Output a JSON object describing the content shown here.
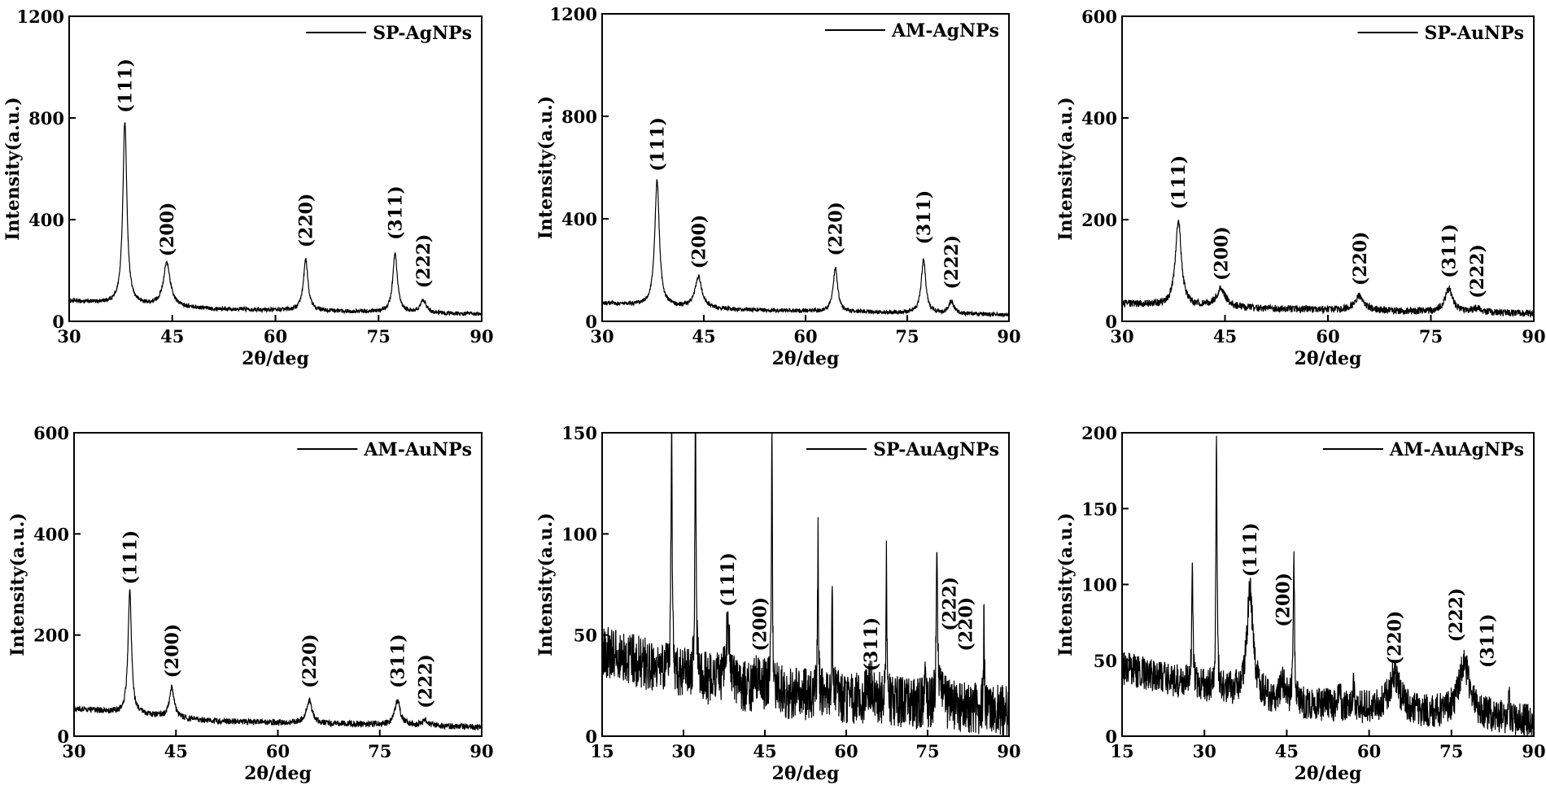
{
  "chart_data": [
    {
      "type": "line",
      "xlabel": "2θ/deg",
      "ylabel": "Intensity(a.u.)",
      "xlim": [
        30,
        90
      ],
      "ylim": [
        0,
        1200
      ],
      "xticks": [
        "30",
        "45",
        "60",
        "75",
        "90"
      ],
      "yticks": [
        "0",
        "400",
        "800",
        "1200"
      ],
      "legend_position": "top-right",
      "series": [
        {
          "name": "SP-AgNPs",
          "baseline": [
            [
              30,
              80
            ],
            [
              50,
              50
            ],
            [
              90,
              28
            ]
          ],
          "noise": 8,
          "peaks": [
            [
              38.1,
              720,
              0.35
            ],
            [
              44.2,
              170,
              0.6
            ],
            [
              64.4,
              200,
              0.4
            ],
            [
              77.4,
              230,
              0.4
            ],
            [
              81.5,
              50,
              0.5
            ]
          ]
        }
      ],
      "peak_labels": [
        {
          "text": "(111)",
          "x": 38.1,
          "y": 820
        },
        {
          "text": "(200)",
          "x": 44.2,
          "y": 255
        },
        {
          "text": "(220)",
          "x": 64.4,
          "y": 290
        },
        {
          "text": "(311)",
          "x": 77.4,
          "y": 320
        },
        {
          "text": "(222)",
          "x": 81.5,
          "y": 130
        }
      ]
    },
    {
      "type": "line",
      "xlabel": "2θ/deg",
      "ylabel": "Intensity(a.u.)",
      "xlim": [
        30,
        90
      ],
      "ylim": [
        0,
        1200
      ],
      "xticks": [
        "30",
        "45",
        "60",
        "75",
        "90"
      ],
      "yticks": [
        "0",
        "400",
        "800",
        "1200"
      ],
      "legend_position": "top-right",
      "series": [
        {
          "name": "AM-AgNPs",
          "baseline": [
            [
              30,
              70
            ],
            [
              50,
              45
            ],
            [
              90,
              25
            ]
          ],
          "noise": 8,
          "peaks": [
            [
              38.1,
              490,
              0.4
            ],
            [
              44.2,
              120,
              0.6
            ],
            [
              64.4,
              170,
              0.4
            ],
            [
              77.4,
              210,
              0.4
            ],
            [
              81.5,
              45,
              0.5
            ]
          ]
        }
      ],
      "peak_labels": [
        {
          "text": "(111)",
          "x": 38.1,
          "y": 585
        },
        {
          "text": "(200)",
          "x": 44.2,
          "y": 205
        },
        {
          "text": "(220)",
          "x": 64.4,
          "y": 255
        },
        {
          "text": "(311)",
          "x": 77.4,
          "y": 300
        },
        {
          "text": "(222)",
          "x": 81.5,
          "y": 125
        }
      ]
    },
    {
      "type": "line",
      "xlabel": "2θ/deg",
      "ylabel": "Intensity(a.u.)",
      "xlim": [
        30,
        90
      ],
      "ylim": [
        0,
        600
      ],
      "xticks": [
        "30",
        "45",
        "60",
        "75",
        "90"
      ],
      "yticks": [
        "0",
        "200",
        "400",
        "600"
      ],
      "legend_position": "top-right",
      "series": [
        {
          "name": "SP-AuNPs",
          "baseline": [
            [
              30,
              35
            ],
            [
              50,
              25
            ],
            [
              90,
              15
            ]
          ],
          "noise": 7,
          "peaks": [
            [
              38.2,
              170,
              0.5
            ],
            [
              44.4,
              35,
              0.8
            ],
            [
              64.6,
              28,
              0.8
            ],
            [
              77.6,
              45,
              0.7
            ],
            [
              81.7,
              8,
              0.8
            ]
          ]
        }
      ],
      "peak_labels": [
        {
          "text": "(111)",
          "x": 38.2,
          "y": 220
        },
        {
          "text": "(200)",
          "x": 44.4,
          "y": 80
        },
        {
          "text": "(220)",
          "x": 64.6,
          "y": 70
        },
        {
          "text": "(311)",
          "x": 77.6,
          "y": 85
        },
        {
          "text": "(222)",
          "x": 81.7,
          "y": 45
        }
      ]
    },
    {
      "type": "line",
      "xlabel": "2θ/deg",
      "ylabel": "Intensity(a.u.)",
      "xlim": [
        30,
        90
      ],
      "ylim": [
        0,
        600
      ],
      "xticks": [
        "30",
        "45",
        "60",
        "75",
        "90"
      ],
      "yticks": [
        "0",
        "200",
        "400",
        "600"
      ],
      "legend_position": "top-right",
      "series": [
        {
          "name": "AM-AuNPs",
          "baseline": [
            [
              30,
              55
            ],
            [
              50,
              30
            ],
            [
              90,
              18
            ]
          ],
          "noise": 6,
          "peaks": [
            [
              38.2,
              245,
              0.3
            ],
            [
              44.4,
              60,
              0.4
            ],
            [
              64.6,
              45,
              0.5
            ],
            [
              77.6,
              48,
              0.5
            ],
            [
              81.7,
              10,
              0.6
            ]
          ]
        }
      ],
      "peak_labels": [
        {
          "text": "(111)",
          "x": 38.2,
          "y": 300
        },
        {
          "text": "(200)",
          "x": 44.4,
          "y": 115
        },
        {
          "text": "(220)",
          "x": 64.6,
          "y": 95
        },
        {
          "text": "(311)",
          "x": 77.6,
          "y": 95
        },
        {
          "text": "(222)",
          "x": 81.7,
          "y": 55
        }
      ]
    },
    {
      "type": "line",
      "xlabel": "2θ/deg",
      "ylabel": "Intensity(a.u.)",
      "xlim": [
        15,
        90
      ],
      "ylim": [
        0,
        150
      ],
      "xticks": [
        "15",
        "30",
        "45",
        "60",
        "75",
        "90"
      ],
      "yticks": [
        "0",
        "50",
        "100",
        "150"
      ],
      "legend_position": "top-right",
      "series": [
        {
          "name": "SP-AuAgNPs",
          "baseline": [
            [
              15,
              42
            ],
            [
              30,
              30
            ],
            [
              45,
              22
            ],
            [
              90,
              12
            ]
          ],
          "noise": 13,
          "peaks": [
            [
              27.8,
              130,
              0.12
            ],
            [
              32.2,
              140,
              0.12
            ],
            [
              38.1,
              25,
              0.5
            ],
            [
              44.0,
              10,
              0.6
            ],
            [
              46.3,
              140,
              0.1
            ],
            [
              54.8,
              82,
              0.1
            ],
            [
              57.4,
              60,
              0.1
            ],
            [
              64.5,
              8,
              0.6
            ],
            [
              67.4,
              75,
              0.1
            ],
            [
              74.5,
              15,
              0.1
            ],
            [
              76.7,
              80,
              0.12
            ],
            [
              77.5,
              12,
              0.5
            ],
            [
              85.4,
              45,
              0.1
            ]
          ]
        }
      ],
      "peak_labels": [
        {
          "text": "(111)",
          "x": 38.1,
          "y": 64
        },
        {
          "text": "(200)",
          "x": 44.0,
          "y": 42
        },
        {
          "text": "(311)",
          "x": 64.5,
          "y": 32
        },
        {
          "text": "(222)",
          "x": 79.0,
          "y": 52
        },
        {
          "text": "(220)",
          "x": 82.0,
          "y": 42
        }
      ]
    },
    {
      "type": "line",
      "xlabel": "2θ/deg",
      "ylabel": "Intensity(a.u.)",
      "xlim": [
        15,
        90
      ],
      "ylim": [
        0,
        200
      ],
      "xticks": [
        "15",
        "30",
        "45",
        "60",
        "75",
        "90"
      ],
      "yticks": [
        "0",
        "50",
        "100",
        "150",
        "200"
      ],
      "legend_position": "top-right",
      "series": [
        {
          "name": "AM-AuAgNPs",
          "baseline": [
            [
              15,
              45
            ],
            [
              30,
              32
            ],
            [
              45,
              22
            ],
            [
              90,
              10
            ]
          ],
          "noise": 11,
          "peaks": [
            [
              27.8,
              90,
              0.12
            ],
            [
              32.2,
              170,
              0.12
            ],
            [
              38.3,
              68,
              0.7
            ],
            [
              44.3,
              12,
              0.6
            ],
            [
              46.3,
              105,
              0.12
            ],
            [
              54.6,
              20,
              0.12
            ],
            [
              57.2,
              15,
              0.12
            ],
            [
              64.6,
              22,
              1.2
            ],
            [
              77.3,
              35,
              1.2
            ],
            [
              85.5,
              12,
              0.12
            ]
          ]
        }
      ],
      "peak_labels": [
        {
          "text": "(111)",
          "x": 38.3,
          "y": 105
        },
        {
          "text": "(200)",
          "x": 44.3,
          "y": 72
        },
        {
          "text": "(220)",
          "x": 64.6,
          "y": 47
        },
        {
          "text": "(222)",
          "x": 75.8,
          "y": 62
        },
        {
          "text": "(311)",
          "x": 81.5,
          "y": 45
        }
      ]
    }
  ]
}
